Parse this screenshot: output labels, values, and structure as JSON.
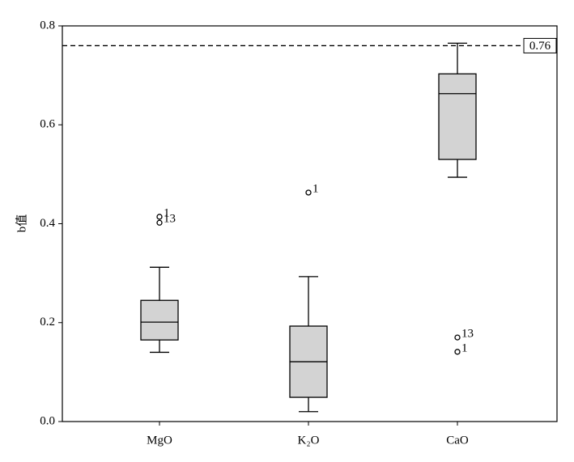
{
  "chart_data": {
    "type": "box",
    "y_label": "b值",
    "categories": [
      "MgO",
      "K₂O",
      "CaO"
    ],
    "boxes": [
      {
        "whislo": 0.14,
        "q1": 0.165,
        "med": 0.201,
        "q3": 0.245,
        "whishi": 0.312,
        "fliers": [
          0.414,
          0.402
        ],
        "flier_labels": [
          "1",
          "13"
        ]
      },
      {
        "whislo": 0.02,
        "q1": 0.049,
        "med": 0.121,
        "q3": 0.193,
        "whishi": 0.293,
        "fliers": [
          0.463
        ],
        "flier_labels": [
          "1"
        ]
      },
      {
        "whislo": 0.494,
        "q1": 0.53,
        "med": 0.663,
        "q3": 0.703,
        "whishi": 0.765,
        "fliers": [
          0.17,
          0.141
        ],
        "flier_labels": [
          "13",
          "1"
        ]
      }
    ],
    "color": "#d3d3d3",
    "reference_line": {
      "value": 0.76,
      "label": "0.76"
    },
    "ylim": [
      0,
      0.8
    ],
    "yticks": [
      {
        "value": 0,
        "label": "0.0"
      },
      0.2,
      0.4,
      0.6,
      0.8
    ]
  }
}
